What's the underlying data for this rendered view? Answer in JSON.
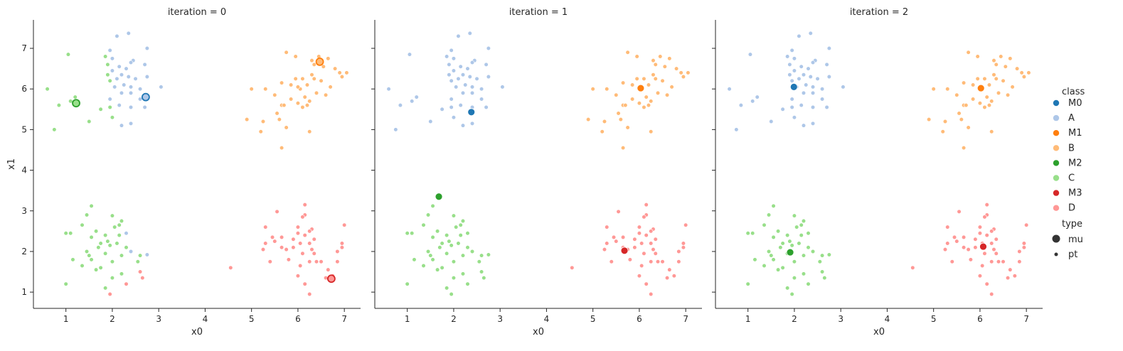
{
  "chart_data": {
    "type": "scatter",
    "xlabel": "x0",
    "ylabel": "x1",
    "xlim": [
      0.3,
      7.35
    ],
    "ylim": [
      0.6,
      7.7
    ],
    "x_ticks": [
      1,
      2,
      3,
      4,
      5,
      6,
      7
    ],
    "y_ticks": [
      1,
      2,
      3,
      4,
      5,
      6,
      7
    ],
    "grid": false,
    "legend_placement": "right",
    "colors": {
      "M0": "#1f77b4",
      "A": "#aec7e8",
      "M1": "#ff7f0e",
      "B": "#ffbb78",
      "M2": "#2ca02c",
      "C": "#98df8a",
      "M3": "#d62728",
      "D": "#ff9896"
    },
    "legend": {
      "class_title": "class",
      "classes": [
        "M0",
        "A",
        "M1",
        "B",
        "M2",
        "C",
        "M3",
        "D"
      ],
      "type_title": "type",
      "types": [
        "mu",
        "pt"
      ]
    },
    "clusters": {
      "A": [
        [
          2.35,
          7.37
        ],
        [
          2.1,
          7.3
        ],
        [
          2.75,
          7.0
        ],
        [
          1.95,
          6.95
        ],
        [
          2.45,
          6.7
        ],
        [
          1.85,
          6.8
        ],
        [
          2.0,
          6.75
        ],
        [
          2.4,
          6.65
        ],
        [
          2.3,
          6.5
        ],
        [
          2.7,
          6.6
        ],
        [
          1.9,
          6.6
        ],
        [
          2.15,
          6.55
        ],
        [
          2.0,
          6.45
        ],
        [
          2.35,
          6.3
        ],
        [
          2.2,
          6.35
        ],
        [
          1.9,
          6.35
        ],
        [
          2.5,
          6.25
        ],
        [
          2.1,
          6.25
        ],
        [
          2.25,
          6.1
        ],
        [
          2.4,
          6.05
        ],
        [
          2.05,
          6.05
        ],
        [
          1.95,
          6.2
        ],
        [
          2.6,
          6.0
        ],
        [
          2.2,
          5.9
        ],
        [
          2.4,
          5.9
        ],
        [
          3.05,
          6.05
        ],
        [
          2.75,
          6.3
        ],
        [
          2.6,
          5.75
        ],
        [
          2.15,
          5.6
        ],
        [
          2.4,
          5.55
        ],
        [
          1.95,
          5.55
        ],
        [
          2.7,
          5.55
        ],
        [
          2.0,
          5.3
        ],
        [
          2.2,
          5.1
        ],
        [
          2.4,
          5.15
        ],
        [
          1.5,
          5.2
        ],
        [
          1.75,
          5.5
        ],
        [
          1.2,
          5.8
        ],
        [
          1.1,
          5.7
        ],
        [
          0.85,
          5.6
        ],
        [
          1.05,
          6.85
        ],
        [
          0.6,
          6.0
        ],
        [
          0.75,
          5.0
        ],
        [
          1.95,
          5.75
        ]
      ],
      "B": [
        [
          5.75,
          6.9
        ],
        [
          6.45,
          6.8
        ],
        [
          5.95,
          6.8
        ],
        [
          6.65,
          6.75
        ],
        [
          6.3,
          6.7
        ],
        [
          6.35,
          6.6
        ],
        [
          6.55,
          6.55
        ],
        [
          6.8,
          6.5
        ],
        [
          6.9,
          6.4
        ],
        [
          7.05,
          6.4
        ],
        [
          6.95,
          6.3
        ],
        [
          6.3,
          6.35
        ],
        [
          6.1,
          6.25
        ],
        [
          6.5,
          6.2
        ],
        [
          5.65,
          6.15
        ],
        [
          5.85,
          6.1
        ],
        [
          6.05,
          6.0
        ],
        [
          6.2,
          6.1
        ],
        [
          6.0,
          6.05
        ],
        [
          6.4,
          5.9
        ],
        [
          6.6,
          5.85
        ],
        [
          6.15,
          5.8
        ],
        [
          6.25,
          5.7
        ],
        [
          5.85,
          5.75
        ],
        [
          5.5,
          5.85
        ],
        [
          5.3,
          6.0
        ],
        [
          5.0,
          6.0
        ],
        [
          5.65,
          5.6
        ],
        [
          6.1,
          5.55
        ],
        [
          6.2,
          5.6
        ],
        [
          6.0,
          5.65
        ],
        [
          5.55,
          5.4
        ],
        [
          5.6,
          5.25
        ],
        [
          5.25,
          5.2
        ],
        [
          4.9,
          5.25
        ],
        [
          5.75,
          5.05
        ],
        [
          5.2,
          4.95
        ],
        [
          6.25,
          4.95
        ],
        [
          5.65,
          4.55
        ],
        [
          5.7,
          5.6
        ],
        [
          5.95,
          6.25
        ],
        [
          6.7,
          6.05
        ],
        [
          6.35,
          6.25
        ]
      ],
      "C": [
        [
          1.55,
          3.12
        ],
        [
          1.45,
          2.9
        ],
        [
          2.0,
          2.88
        ],
        [
          2.2,
          2.75
        ],
        [
          2.15,
          2.65
        ],
        [
          1.35,
          2.65
        ],
        [
          2.05,
          2.6
        ],
        [
          1.65,
          2.5
        ],
        [
          1.1,
          2.45
        ],
        [
          1.0,
          2.45
        ],
        [
          1.85,
          2.4
        ],
        [
          1.55,
          2.35
        ],
        [
          2.3,
          2.45
        ],
        [
          1.9,
          2.25
        ],
        [
          1.75,
          2.2
        ],
        [
          1.95,
          2.15
        ],
        [
          2.1,
          2.2
        ],
        [
          1.7,
          2.1
        ],
        [
          2.3,
          2.1
        ],
        [
          1.45,
          2.0
        ],
        [
          1.85,
          1.95
        ],
        [
          2.2,
          1.9
        ],
        [
          2.6,
          1.9
        ],
        [
          2.75,
          1.92
        ],
        [
          2.55,
          1.75
        ],
        [
          1.55,
          1.8
        ],
        [
          2.0,
          1.75
        ],
        [
          1.75,
          1.6
        ],
        [
          1.65,
          1.55
        ],
        [
          1.35,
          1.65
        ],
        [
          2.2,
          1.45
        ],
        [
          2.6,
          1.5
        ],
        [
          2.65,
          1.35
        ],
        [
          2.0,
          1.35
        ],
        [
          2.3,
          1.2
        ],
        [
          1.85,
          1.1
        ],
        [
          1.95,
          0.95
        ],
        [
          1.0,
          1.2
        ],
        [
          1.15,
          1.8
        ],
        [
          1.5,
          1.9
        ],
        [
          2.15,
          2.4
        ],
        [
          2.4,
          2.0
        ]
      ],
      "D": [
        [
          6.15,
          3.15
        ],
        [
          5.55,
          2.98
        ],
        [
          6.15,
          2.9
        ],
        [
          6.1,
          2.85
        ],
        [
          6.0,
          2.6
        ],
        [
          5.3,
          2.6
        ],
        [
          6.3,
          2.55
        ],
        [
          6.25,
          2.5
        ],
        [
          6.0,
          2.45
        ],
        [
          6.15,
          2.4
        ],
        [
          5.65,
          2.35
        ],
        [
          5.45,
          2.35
        ],
        [
          6.35,
          2.3
        ],
        [
          5.9,
          2.3
        ],
        [
          5.3,
          2.2
        ],
        [
          5.5,
          2.25
        ],
        [
          6.05,
          2.2
        ],
        [
          6.25,
          2.2
        ],
        [
          5.65,
          2.1
        ],
        [
          5.75,
          2.05
        ],
        [
          5.25,
          2.05
        ],
        [
          6.95,
          2.2
        ],
        [
          6.95,
          2.1
        ],
        [
          6.85,
          2.0
        ],
        [
          6.3,
          2.05
        ],
        [
          6.35,
          1.95
        ],
        [
          6.1,
          1.95
        ],
        [
          5.8,
          1.8
        ],
        [
          5.4,
          1.75
        ],
        [
          6.25,
          1.75
        ],
        [
          6.4,
          1.75
        ],
        [
          6.5,
          1.75
        ],
        [
          6.05,
          1.65
        ],
        [
          6.65,
          1.55
        ],
        [
          6.75,
          1.4
        ],
        [
          6.6,
          1.35
        ],
        [
          6.0,
          1.4
        ],
        [
          6.15,
          1.2
        ],
        [
          6.25,
          0.95
        ],
        [
          4.55,
          1.6
        ],
        [
          7.0,
          2.65
        ],
        [
          5.9,
          2.1
        ],
        [
          6.85,
          1.75
        ]
      ]
    },
    "panels": [
      {
        "title": "iteration = 0",
        "mu": {
          "M0": [
            2.72,
            5.8
          ],
          "M1": [
            6.47,
            6.67
          ],
          "M2": [
            1.22,
            5.65
          ],
          "M3": [
            6.72,
            1.33
          ]
        },
        "reassigned": {
          "C": [
            [
              0.6,
              6.0
            ],
            [
              1.1,
              5.7
            ],
            [
              1.05,
              6.85
            ],
            [
              0.85,
              5.6
            ],
            [
              0.75,
              5.0
            ],
            [
              1.75,
              5.5
            ],
            [
              1.2,
              5.8
            ],
            [
              1.5,
              5.2
            ]
          ]
        },
        "extra_c": [
          [
            1.95,
            6.2
          ],
          [
            1.9,
            6.35
          ],
          [
            1.85,
            6.8
          ],
          [
            1.9,
            6.6
          ],
          [
            2.0,
            5.75
          ],
          [
            1.95,
            5.55
          ],
          [
            2.0,
            5.3
          ]
        ],
        "extra_a": [
          [
            2.6,
            2.2
          ],
          [
            2.75,
            1.92
          ],
          [
            2.3,
            2.45
          ],
          [
            2.4,
            2.0
          ]
        ],
        "extra_d": [
          [
            2.3,
            1.2
          ],
          [
            2.6,
            1.5
          ],
          [
            2.65,
            1.35
          ],
          [
            1.95,
            0.95
          ]
        ]
      },
      {
        "title": "iteration = 1",
        "mu": {
          "M0": [
            2.38,
            5.43
          ],
          "M1": [
            6.03,
            6.02
          ],
          "M2": [
            1.68,
            3.35
          ],
          "M3": [
            5.68,
            2.02
          ]
        },
        "reassigned": {},
        "extra_c": [],
        "extra_a": [],
        "extra_d": []
      },
      {
        "title": "iteration = 2",
        "mu": {
          "M0": [
            1.99,
            6.05
          ],
          "M1": [
            6.02,
            6.02
          ],
          "M2": [
            1.91,
            1.98
          ],
          "M3": [
            6.07,
            2.12
          ]
        },
        "reassigned": {},
        "extra_c": [],
        "extra_a": [],
        "extra_d": []
      }
    ]
  }
}
